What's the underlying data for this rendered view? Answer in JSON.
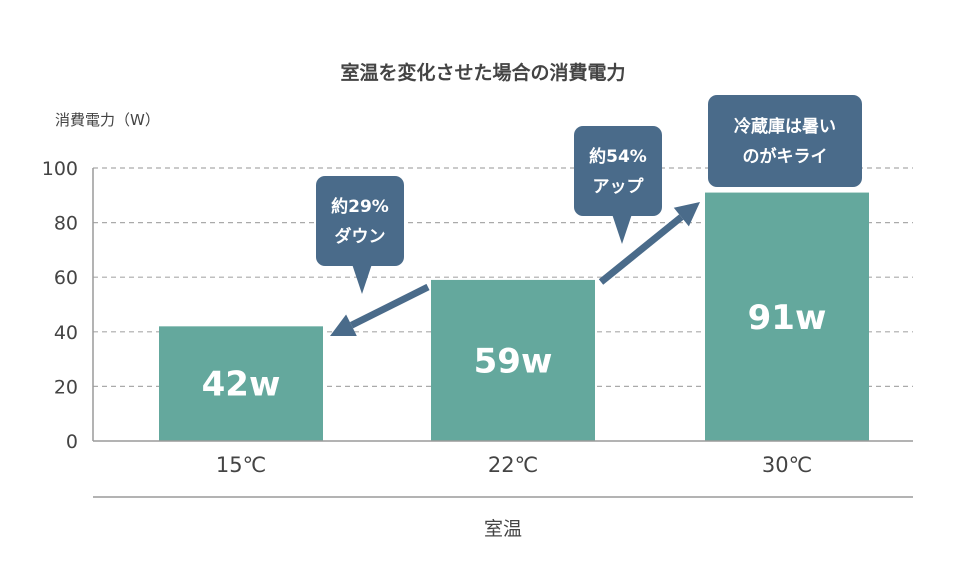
{
  "chart_data": {
    "type": "bar",
    "title": "室温を変化させた場合の消費電力",
    "ylabel": "消費電力（W）",
    "xlabel": "室温",
    "categories": [
      "15℃",
      "22℃",
      "30℃"
    ],
    "values": [
      42,
      59,
      91
    ],
    "data_labels": [
      "42w",
      "59w",
      "91w"
    ],
    "ylim": [
      0,
      100
    ],
    "yticks": [
      0,
      20,
      40,
      60,
      80,
      100
    ],
    "grid": "horizontal dashed",
    "colors": {
      "bar": "#64a89d",
      "callout": "#4a6b8a",
      "arrow": "#4a6b8a"
    },
    "annotations": [
      {
        "lines": [
          "約29%",
          "ダウン"
        ]
      },
      {
        "lines": [
          "約54%",
          "アップ"
        ]
      },
      {
        "lines": [
          "冷蔵庫は暑い",
          "のがキライ"
        ]
      }
    ]
  }
}
